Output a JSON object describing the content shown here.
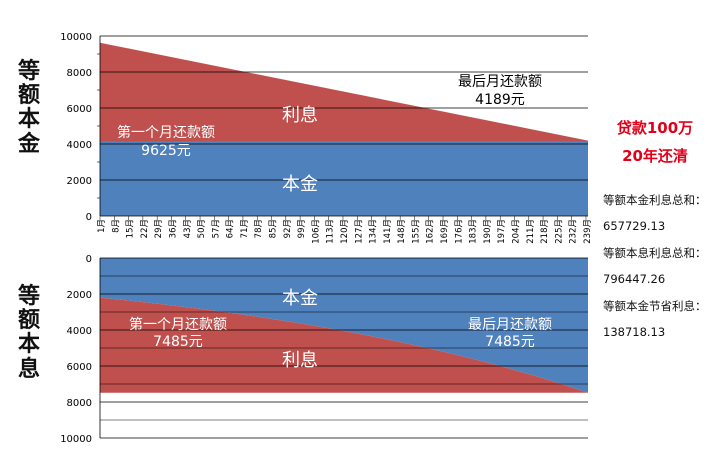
{
  "titles": {
    "top": "等额本金",
    "bottom": "等额本息"
  },
  "loan": {
    "line1": "贷款100万",
    "line2": "20年还清"
  },
  "notes": [
    {
      "label": "等额本金利息总和：",
      "value": "657729.13"
    },
    {
      "label": "等额本息利息总和：",
      "value": "796447.26"
    },
    {
      "label": "等额本金节省利息：",
      "value": "138718.13"
    }
  ],
  "chart_data": [
    {
      "type": "area",
      "name": "等额本金",
      "x_ticks": [
        "1月",
        "8月",
        "15月",
        "22月",
        "29月",
        "36月",
        "43月",
        "50月",
        "57月",
        "64月",
        "71月",
        "78月",
        "85月",
        "92月",
        "99月",
        "106月",
        "113月",
        "120月",
        "127月",
        "134月",
        "141月",
        "148月",
        "155月",
        "162月",
        "169月",
        "176月",
        "183月",
        "190月",
        "197月",
        "204月",
        "211月",
        "218月",
        "225月",
        "232月",
        "239月"
      ],
      "y_ticks": [
        "0",
        "2000",
        "4000",
        "6000",
        "8000",
        "10000"
      ],
      "ylim": [
        0,
        10000
      ],
      "months": 240,
      "principal": 4167,
      "first_payment": 9625,
      "last_payment": 4189,
      "area_labels": {
        "interest": "利息",
        "principal": "本金"
      },
      "annotations": [
        {
          "line1": "第一个月还款额",
          "line2": "9625元"
        },
        {
          "line1": "最后月还款额",
          "line2": "4189元"
        }
      ]
    },
    {
      "type": "area",
      "name": "等额本息",
      "x_ticks": [
        "1月",
        "8月",
        "15月",
        "22月",
        "29月",
        "36月",
        "43月",
        "50月",
        "57月",
        "64月",
        "71月",
        "78月",
        "85月",
        "92月",
        "99月",
        "106月",
        "113月",
        "120月",
        "127月",
        "134月",
        "141月",
        "148月",
        "155月",
        "162月",
        "169月",
        "176月",
        "183月",
        "190月",
        "197月",
        "204月",
        "211月",
        "218月",
        "225月",
        "232月",
        "239月"
      ],
      "y_ticks": [
        "0",
        "2000",
        "4000",
        "6000",
        "8000",
        "10000"
      ],
      "ylim": [
        0,
        10000
      ],
      "y_inverted": true,
      "months": 240,
      "payment": 7485,
      "principal_first": 2200,
      "principal_last": 7485,
      "area_labels": {
        "interest": "利息",
        "principal": "本金"
      },
      "annotations": [
        {
          "line1": "第一个月还款额",
          "line2": "7485元"
        },
        {
          "line1": "最后月还款额",
          "line2": "7485元"
        }
      ]
    }
  ],
  "colors": {
    "interest": "#c0504d",
    "principal": "#4f81bd",
    "accent": "#e0001a"
  }
}
